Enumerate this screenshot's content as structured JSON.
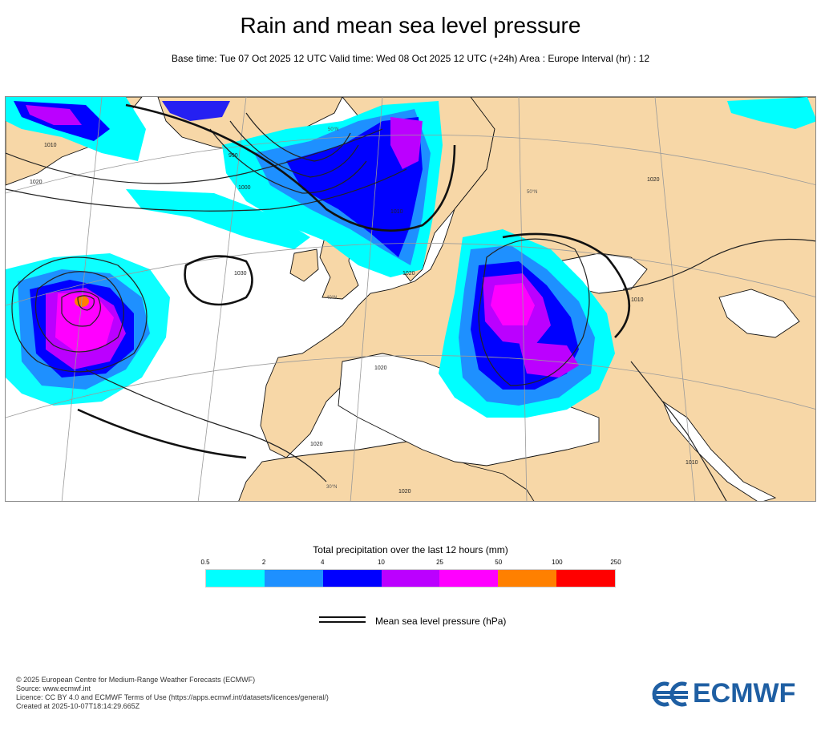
{
  "header": {
    "title": "Rain and mean sea level pressure",
    "subtitle": "Base time: Tue 07 Oct 2025 12 UTC Valid time: Wed 08 Oct 2025 12 UTC (+24h) Area : Europe Interval (hr) : 12"
  },
  "map": {
    "colors": {
      "land": "#f7d7a7",
      "sea": "#ffffff",
      "coast": "#111111",
      "isobar": "#222222",
      "graticule": "#9a9a9a"
    },
    "isobar_labels": [
      "1010",
      "1020",
      "1000",
      "990",
      "1030",
      "1010",
      "1020",
      "1020",
      "1010",
      "1020",
      "1020",
      "1010",
      "1020"
    ],
    "lat_labels": [
      "50°N",
      "40°N",
      "30°N",
      "50°N"
    ]
  },
  "legend": {
    "title": "Total precipitation over the last 12 hours (mm)",
    "ticks": [
      "0.5",
      "2",
      "4",
      "10",
      "25",
      "50",
      "100",
      "250"
    ],
    "colors": [
      "#00ffff",
      "#1e90ff",
      "#0000ff",
      "#bb00ff",
      "#ff00ff",
      "#ff8000",
      "#ff0000"
    ],
    "mslp_label": "Mean sea level pressure (hPa)"
  },
  "footer": {
    "lines": [
      "© 2025 European Centre for Medium-Range Weather Forecasts (ECMWF)",
      "Source: www.ecmwf.int",
      "Licence: CC BY 4.0 and ECMWF Terms of Use (https://apps.ecmwf.int/datasets/licences/general/)",
      "Created at 2025-10-07T18:14:29.665Z"
    ]
  },
  "logo": {
    "text": "ECMWF",
    "color": "#1f5fa3"
  }
}
